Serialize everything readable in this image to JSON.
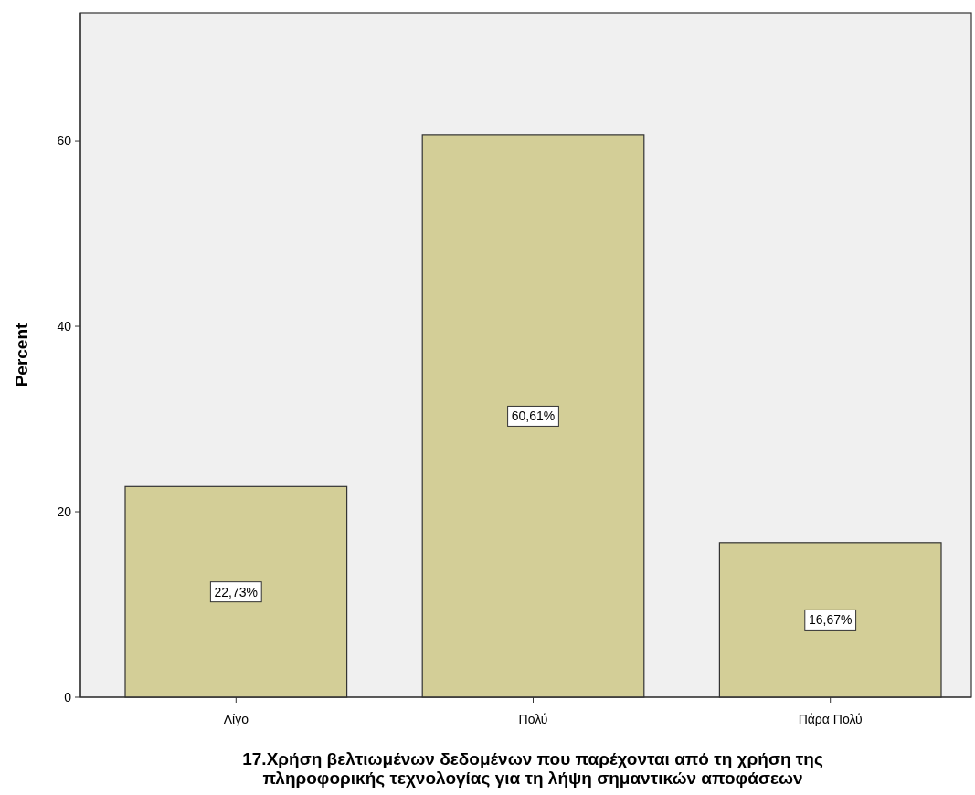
{
  "chart_data": {
    "type": "bar",
    "xlabel": "17.Χρήση βελτιωμένων δεδομένων που παρέχονται από τη χρήση της\nπληροφορικής τεχνολογίας για τη λήψη σημαντικών αποφάσεων",
    "ylabel": "Percent",
    "categories": [
      "Λίγο",
      "Πολύ",
      "Πάρα Πολύ"
    ],
    "values": [
      22.73,
      60.61,
      16.67
    ],
    "value_labels": [
      "22,73%",
      "60,61%",
      "16,67%"
    ],
    "color": "#d3ce97",
    "ylim": [
      0,
      73.8
    ],
    "yticks": [
      0,
      20,
      40,
      60
    ],
    "grid": false
  }
}
